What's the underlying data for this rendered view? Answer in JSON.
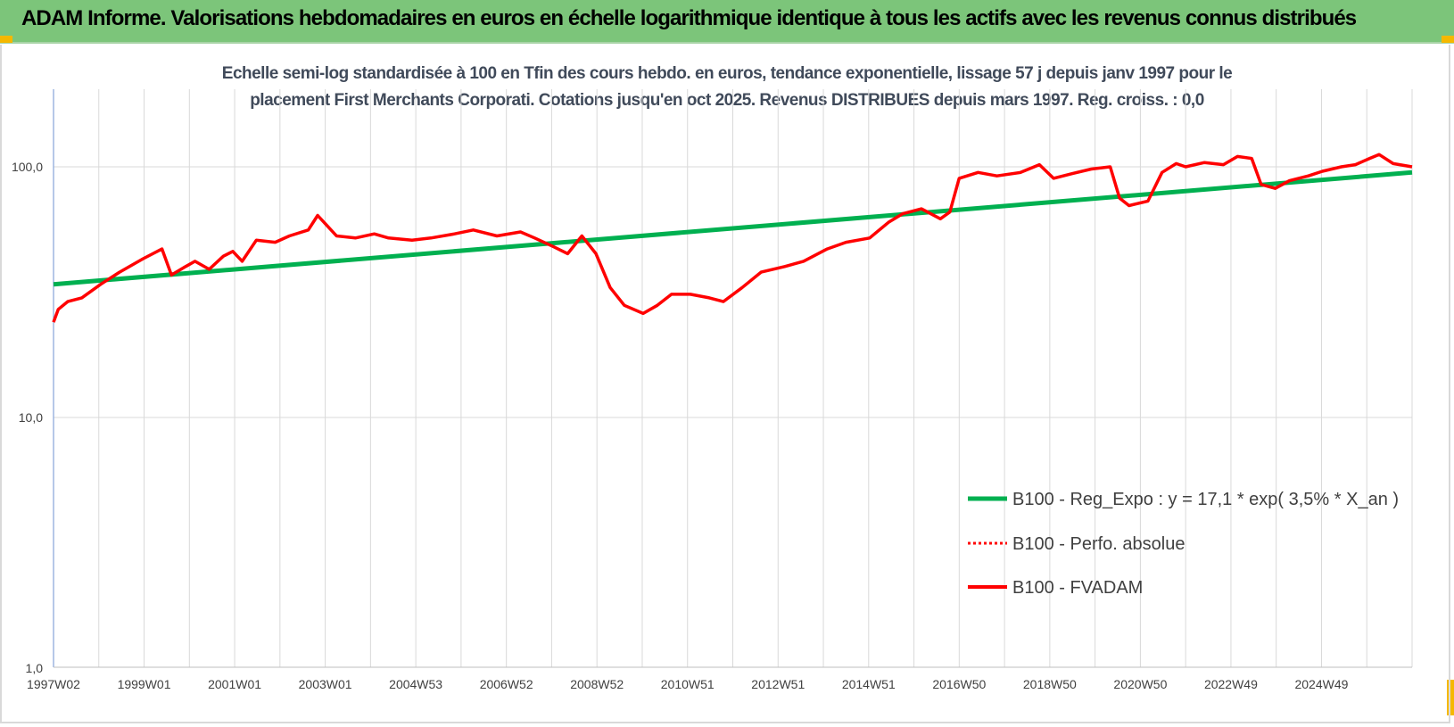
{
  "header": {
    "title": "ADAM Informe. Valorisations hebdomadaires en euros en échelle logarithmique identique à tous les actifs avec les revenus connus distribués"
  },
  "colors": {
    "banner": "#7cc57a",
    "trend": "#00b050",
    "fvadam": "#ff0000",
    "perfo": "#ff0000",
    "grid": "#d9d9d9",
    "accent_corner": "#f5b800"
  },
  "chart_data": {
    "type": "line",
    "title_line1": "Echelle semi-log standardisée à 100 en Tfin des cours hebdo. en euros, tendance exponentielle, lissage 57 j depuis janv 1997 pour le",
    "title_line2": "placement First Merchants Corporati. Cotations jusqu'en oct 2025.  Revenus DISTRIBUES depuis mars 1997. Reg. croiss. : 0,0",
    "y_scale": "log",
    "ylim": [
      1,
      100
    ],
    "y_ticks": [
      "1,0",
      "10,0",
      "100,0"
    ],
    "x_ticks": [
      "1997W02",
      "1999W01",
      "2001W01",
      "2003W01",
      "2004W53",
      "2006W52",
      "2008W52",
      "2010W51",
      "2012W51",
      "2014W51",
      "2016W50",
      "2018W50",
      "2020W50",
      "2022W49",
      "2024W49"
    ],
    "xlim": [
      1997.0,
      2025.8
    ],
    "grid": true,
    "legend_position": "right",
    "legend": [
      {
        "name": "B100 - Reg_Expo : y = 17,1 * exp( 3,5% *  X_an )",
        "style": "solid-green"
      },
      {
        "name": "B100 - Perfo. absolue",
        "style": "dotted-red"
      },
      {
        "name": "B100 - FVADAM",
        "style": "solid-red"
      }
    ],
    "series": [
      {
        "name": "B100 - Reg_Expo : y = 17,1 * exp( 3,5% *  X_an )",
        "x": [
          1997.0,
          2025.8
        ],
        "y": [
          34.0,
          95.0
        ]
      },
      {
        "name": "B100 - FVADAM",
        "x": [
          1997.0,
          1997.1,
          1997.3,
          1997.6,
          1998.0,
          1998.4,
          1998.9,
          1999.3,
          1999.5,
          1999.8,
          2000.0,
          2000.3,
          2000.6,
          2000.8,
          2001.0,
          2001.3,
          2001.7,
          2002.0,
          2002.4,
          2002.6,
          2003.0,
          2003.4,
          2003.8,
          2004.1,
          2004.6,
          2005.0,
          2005.5,
          2005.9,
          2006.4,
          2006.9,
          2007.2,
          2007.6,
          2007.9,
          2008.2,
          2008.5,
          2008.8,
          2009.1,
          2009.5,
          2009.8,
          2010.1,
          2010.5,
          2010.9,
          2011.2,
          2011.6,
          2012.0,
          2012.5,
          2012.9,
          2013.4,
          2013.8,
          2014.3,
          2014.7,
          2015.0,
          2015.4,
          2015.8,
          2016.0,
          2016.2,
          2016.6,
          2017.0,
          2017.5,
          2017.9,
          2018.2,
          2018.6,
          2019.0,
          2019.4,
          2019.6,
          2019.8,
          2020.2,
          2020.5,
          2020.8,
          2021.0,
          2021.4,
          2021.8,
          2022.1,
          2022.4,
          2022.6,
          2022.9,
          2023.2,
          2023.6,
          2023.9,
          2024.3,
          2024.6,
          2024.9,
          2025.1,
          2025.4,
          2025.8
        ],
        "y": [
          24,
          27,
          29,
          30,
          34,
          38,
          43,
          47,
          37,
          40,
          42,
          39,
          44,
          46,
          42,
          51,
          50,
          53,
          56,
          64,
          53,
          52,
          54,
          52,
          51,
          52,
          54,
          56,
          53,
          55,
          52,
          48,
          45,
          53,
          45,
          33,
          28,
          26,
          28,
          31,
          31,
          30,
          29,
          33,
          38,
          40,
          42,
          47,
          50,
          52,
          60,
          65,
          68,
          62,
          66,
          90,
          95,
          92,
          95,
          102,
          90,
          94,
          98,
          100,
          75,
          70,
          73,
          95,
          103,
          100,
          104,
          102,
          110,
          108,
          85,
          82,
          88,
          92,
          96,
          100,
          102,
          108,
          112,
          103,
          100
        ]
      }
    ]
  }
}
